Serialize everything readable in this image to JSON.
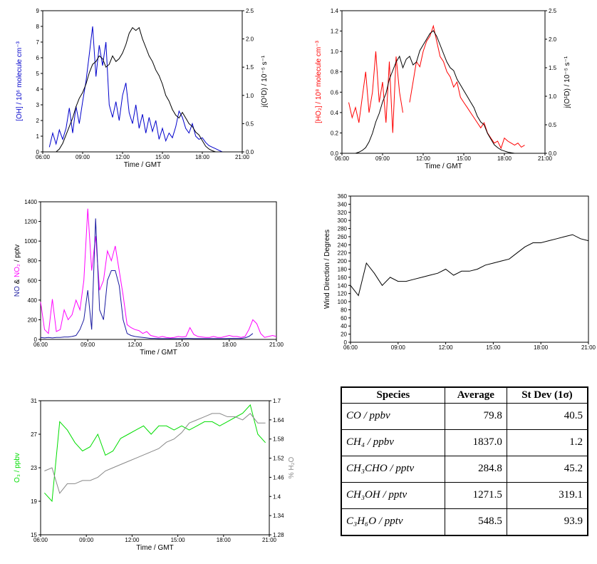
{
  "chart_data": [
    {
      "type": "line",
      "xlabel": "Time / GMT",
      "ylabel": [
        {
          "text": "[OH] / 10⁶ molecule cm⁻³",
          "color": "#0000cc"
        }
      ],
      "y2label": [
        {
          "text": "j(O¹D) / 10⁻⁵ s⁻¹",
          "color": "#000000"
        }
      ],
      "xlim": [
        6,
        21
      ],
      "xticks": [
        {
          "value": 6,
          "label": "06:00"
        },
        {
          "value": 9,
          "label": "09:00"
        },
        {
          "value": 12,
          "label": "12:00"
        },
        {
          "value": 15,
          "label": "15:00"
        },
        {
          "value": 18,
          "label": "18:00"
        },
        {
          "value": 21,
          "label": "21:00"
        }
      ],
      "ylim": [
        0,
        9
      ],
      "yticks": [
        0,
        1,
        2,
        3,
        4,
        5,
        6,
        7,
        8,
        9
      ],
      "y2lim": [
        0,
        2.5
      ],
      "y2ticks": [
        {
          "value": 0,
          "label": "0.0"
        },
        0.5,
        {
          "value": 1,
          "label": "1.0"
        },
        1.5,
        {
          "value": 2,
          "label": "2.0"
        },
        2.5
      ],
      "x": [
        6.5,
        6.75,
        7,
        7.25,
        7.5,
        7.75,
        8,
        8.25,
        8.5,
        8.75,
        9,
        9.25,
        9.5,
        9.75,
        10,
        10.25,
        10.5,
        10.75,
        11,
        11.25,
        11.5,
        11.75,
        12,
        12.25,
        12.5,
        12.75,
        13,
        13.25,
        13.5,
        13.75,
        14,
        14.25,
        14.5,
        14.75,
        15,
        15.25,
        15.5,
        15.75,
        16,
        16.25,
        16.5,
        16.75,
        17,
        17.25,
        17.5,
        17.75,
        18,
        18.25,
        18.5,
        18.75,
        19,
        19.25,
        19.5
      ],
      "series": [
        {
          "color": "#0000cc",
          "values": [
            0.3,
            1.2,
            0.5,
            1.4,
            0.8,
            1.5,
            2.8,
            1.2,
            2.9,
            1.8,
            3.2,
            4.5,
            6.2,
            8.0,
            4.8,
            6.8,
            5.5,
            7.0,
            3.0,
            2.2,
            3.2,
            2.0,
            3.6,
            4.4,
            2.5,
            1.8,
            3.0,
            1.5,
            2.4,
            1.2,
            2.2,
            1.3,
            2.0,
            0.8,
            1.5,
            0.7,
            1.2,
            0.9,
            1.6,
            2.6,
            2.2,
            1.5,
            1.2,
            1.8,
            1.0,
            0.8,
            0.9,
            0.6,
            0.4,
            0.3,
            0.2,
            0.1,
            0.0
          ]
        },
        {
          "color": "#000000",
          "axis": "y2",
          "values": [
            null,
            null,
            0.0,
            0.05,
            0.15,
            0.3,
            0.45,
            0.6,
            0.8,
            0.95,
            1.05,
            1.2,
            1.4,
            1.55,
            1.6,
            1.7,
            1.65,
            1.5,
            1.55,
            1.7,
            1.6,
            1.65,
            1.75,
            1.9,
            2.1,
            2.2,
            2.15,
            2.2,
            2.0,
            1.85,
            1.7,
            1.6,
            1.45,
            1.35,
            1.2,
            1.0,
            0.9,
            0.75,
            0.65,
            0.6,
            0.7,
            0.6,
            0.5,
            0.45,
            0.35,
            0.3,
            0.2,
            0.1,
            0.05,
            0.02,
            0.0,
            0.0,
            0.0
          ]
        }
      ]
    },
    {
      "type": "line",
      "xlabel": "Time / GMT",
      "ylabel": [
        {
          "text": "[HO₂] / 10⁸ molecule cm⁻³",
          "color": "#ff0000"
        }
      ],
      "y2label": [
        {
          "text": "j(O¹D) / 10⁻⁵ s⁻¹",
          "color": "#000000"
        }
      ],
      "xlim": [
        6,
        21
      ],
      "xticks": [
        {
          "value": 6,
          "label": "06:00"
        },
        {
          "value": 9,
          "label": "09:00"
        },
        {
          "value": 12,
          "label": "12:00"
        },
        {
          "value": 15,
          "label": "15:00"
        },
        {
          "value": 18,
          "label": "18:00"
        },
        {
          "value": 21,
          "label": "21:00"
        }
      ],
      "ylim": [
        0,
        1.4
      ],
      "yticks": [
        {
          "value": 0,
          "label": "0.0"
        },
        0.2,
        0.4,
        0.6,
        0.8,
        {
          "value": 1,
          "label": "1.0"
        },
        1.2,
        1.4
      ],
      "y2lim": [
        0,
        2.5
      ],
      "y2ticks": [
        {
          "value": 0,
          "label": "0.0"
        },
        0.5,
        {
          "value": 1,
          "label": "1.0"
        },
        1.5,
        {
          "value": 2,
          "label": "2.0"
        },
        2.5
      ],
      "x": [
        6.5,
        6.75,
        7,
        7.25,
        7.5,
        7.75,
        8,
        8.25,
        8.5,
        8.75,
        9,
        9.25,
        9.5,
        9.75,
        10,
        10.25,
        10.5,
        10.75,
        11,
        11.25,
        11.5,
        11.75,
        12,
        12.25,
        12.5,
        12.75,
        13,
        13.25,
        13.5,
        13.75,
        14,
        14.25,
        14.5,
        14.75,
        15,
        15.25,
        15.5,
        15.75,
        16,
        16.25,
        16.5,
        16.75,
        17,
        17.25,
        17.5,
        17.75,
        18,
        18.25,
        18.5,
        18.75,
        19,
        19.25,
        19.5,
        19.75,
        20
      ],
      "series": [
        {
          "color": "#ff0000",
          "values": [
            0.5,
            0.35,
            0.45,
            0.3,
            0.55,
            0.8,
            0.4,
            0.6,
            1.0,
            0.5,
            0.7,
            0.3,
            0.9,
            0.2,
            0.95,
            0.6,
            0.4,
            null,
            0.5,
            0.7,
            0.9,
            0.85,
            1.0,
            1.1,
            1.15,
            1.25,
            1.1,
            0.95,
            0.9,
            0.8,
            0.75,
            0.65,
            0.7,
            0.55,
            0.5,
            0.45,
            0.4,
            0.35,
            0.3,
            0.25,
            0.3,
            0.2,
            0.15,
            0.1,
            0.12,
            0.05,
            0.15,
            0.12,
            0.1,
            0.08,
            0.1,
            0.06,
            0.08,
            null,
            null
          ]
        },
        {
          "color": "#000000",
          "axis": "y2",
          "values": [
            null,
            null,
            0.0,
            0.02,
            0.05,
            0.1,
            0.2,
            0.35,
            0.55,
            0.7,
            0.9,
            1.05,
            1.3,
            1.45,
            1.6,
            1.7,
            1.5,
            1.65,
            1.7,
            1.55,
            1.6,
            1.8,
            1.9,
            2.0,
            2.1,
            2.15,
            2.05,
            1.9,
            1.75,
            1.6,
            1.5,
            1.45,
            1.3,
            1.2,
            1.1,
            1.0,
            0.9,
            0.8,
            0.65,
            0.55,
            0.5,
            0.35,
            0.25,
            0.15,
            0.1,
            0.06,
            0.04,
            0.02,
            0.01,
            0.0,
            0.0,
            0.0,
            0.0,
            0.0,
            0.0
          ]
        }
      ]
    },
    {
      "type": "line",
      "xlabel": "Time / GMT",
      "ylabel": [
        {
          "text": "NO",
          "color": "#1a1aa0"
        },
        {
          "text": "&",
          "color": "#000000"
        },
        {
          "text": "NO₂",
          "color": "#ff00ff"
        },
        {
          "text": "/ pptv",
          "color": "#000000"
        }
      ],
      "xlim": [
        6,
        21
      ],
      "xticks": [
        {
          "value": 6,
          "label": "06:00"
        },
        {
          "value": 9,
          "label": "09:00"
        },
        {
          "value": 12,
          "label": "12:00"
        },
        {
          "value": 15,
          "label": "15:00"
        },
        {
          "value": 18,
          "label": "18:00"
        },
        {
          "value": 21,
          "label": "21:00"
        }
      ],
      "ylim": [
        0,
        1400
      ],
      "yticks": [
        0,
        200,
        400,
        600,
        800,
        1000,
        1200,
        1400
      ],
      "x": [
        6,
        6.25,
        6.5,
        6.75,
        7,
        7.25,
        7.5,
        7.75,
        8,
        8.25,
        8.5,
        8.75,
        9,
        9.25,
        9.5,
        9.75,
        10,
        10.25,
        10.5,
        10.75,
        11,
        11.25,
        11.5,
        11.75,
        12,
        12.25,
        12.5,
        12.75,
        13,
        13.25,
        13.5,
        13.75,
        14,
        14.25,
        14.5,
        14.75,
        15,
        15.25,
        15.5,
        15.75,
        16,
        16.25,
        16.5,
        16.75,
        17,
        17.25,
        17.5,
        17.75,
        18,
        18.25,
        18.5,
        18.75,
        19,
        19.25,
        19.5,
        19.75,
        20,
        20.25,
        20.5,
        20.75,
        21
      ],
      "series": [
        {
          "color": "#ff00ff",
          "values": [
            380,
            100,
            60,
            410,
            80,
            100,
            300,
            200,
            250,
            400,
            300,
            600,
            1330,
            700,
            1050,
            500,
            600,
            900,
            800,
            950,
            700,
            450,
            150,
            120,
            100,
            90,
            60,
            80,
            40,
            30,
            20,
            30,
            20,
            15,
            20,
            30,
            25,
            30,
            120,
            50,
            30,
            25,
            20,
            20,
            30,
            20,
            20,
            30,
            40,
            30,
            30,
            20,
            30,
            100,
            200,
            160,
            60,
            20,
            30,
            40,
            30
          ]
        },
        {
          "color": "#1a1aa0",
          "values": [
            20,
            15,
            20,
            15,
            20,
            20,
            25,
            25,
            30,
            40,
            100,
            200,
            500,
            100,
            1230,
            300,
            200,
            600,
            700,
            700,
            550,
            200,
            60,
            40,
            30,
            25,
            20,
            15,
            10,
            10,
            8,
            8,
            8,
            8,
            8,
            8,
            8,
            10,
            10,
            8,
            8,
            8,
            8,
            8,
            8,
            8,
            8,
            8,
            10,
            10,
            10,
            10,
            15,
            30,
            60,
            null,
            null,
            null,
            null,
            null,
            null
          ]
        }
      ]
    },
    {
      "type": "line",
      "ylabel": [
        {
          "text": "Wind Direction / Degrees",
          "color": "#000000"
        }
      ],
      "xlim": [
        6,
        21
      ],
      "xticks": [
        {
          "value": 6,
          "label": "06:00"
        },
        {
          "value": 9,
          "label": "09:00"
        },
        {
          "value": 12,
          "label": "12:00"
        },
        {
          "value": 15,
          "label": "15:00"
        },
        {
          "value": 18,
          "label": "18:00"
        },
        {
          "value": 21,
          "label": "21:00"
        }
      ],
      "ylim": [
        0,
        360
      ],
      "yticks": [
        0,
        20,
        40,
        60,
        80,
        100,
        120,
        140,
        160,
        180,
        200,
        220,
        240,
        260,
        280,
        300,
        320,
        340,
        360
      ],
      "x": [
        6,
        6.5,
        7,
        7.5,
        8,
        8.5,
        9,
        9.5,
        10,
        10.5,
        11,
        11.5,
        12,
        12.5,
        13,
        13.5,
        14,
        14.5,
        15,
        15.5,
        16,
        16.5,
        17,
        17.5,
        18,
        18.5,
        19,
        19.5,
        20,
        20.5,
        21
      ],
      "series": [
        {
          "color": "#000000",
          "values": [
            140,
            115,
            195,
            170,
            140,
            160,
            150,
            150,
            155,
            160,
            165,
            170,
            180,
            165,
            175,
            175,
            180,
            190,
            195,
            200,
            205,
            220,
            235,
            245,
            245,
            250,
            255,
            260,
            265,
            255,
            250
          ]
        }
      ]
    },
    {
      "type": "line",
      "xlabel": "Time / GMT",
      "ylabel": [
        {
          "text": "O₃ / ppbv",
          "color": "#00dd00"
        }
      ],
      "y2label": [
        {
          "text": "% H₂O",
          "color": "#888888"
        }
      ],
      "xlim": [
        6,
        21
      ],
      "xticks": [
        {
          "value": 6,
          "label": "06:00"
        },
        {
          "value": 9,
          "label": "09:00"
        },
        {
          "value": 12,
          "label": "12:00"
        },
        {
          "value": 15,
          "label": "15:00"
        },
        {
          "value": 18,
          "label": "18:00"
        },
        {
          "value": 21,
          "label": "21:00"
        }
      ],
      "ylim": [
        15,
        31
      ],
      "yticks": [
        15,
        19,
        23,
        27,
        31
      ],
      "y2lim": [
        1.28,
        1.7
      ],
      "y2ticks": [
        1.28,
        1.34,
        1.4,
        1.46,
        1.52,
        1.58,
        1.64,
        1.7
      ],
      "x": [
        6.25,
        6.75,
        7.25,
        7.75,
        8.25,
        8.75,
        9.25,
        9.75,
        10.25,
        10.75,
        11.25,
        11.75,
        12.25,
        12.75,
        13.25,
        13.75,
        14.25,
        14.75,
        15.25,
        15.75,
        16.25,
        16.75,
        17.25,
        17.75,
        18.25,
        18.75,
        19.25,
        19.75,
        20.25,
        20.75
      ],
      "series": [
        {
          "color": "#00dd00",
          "values": [
            20,
            19,
            28.5,
            27.5,
            26,
            25,
            25.5,
            27,
            24.5,
            25,
            26.5,
            27,
            27.5,
            28,
            27,
            28,
            28,
            27.5,
            28,
            27.5,
            28,
            28.5,
            28.5,
            28,
            28.5,
            29,
            29.5,
            30.5,
            27,
            26
          ]
        },
        {
          "color": "#888888",
          "axis": "y2",
          "values": [
            1.48,
            1.49,
            1.41,
            1.44,
            1.44,
            1.45,
            1.45,
            1.46,
            1.48,
            1.49,
            1.5,
            1.51,
            1.52,
            1.53,
            1.54,
            1.55,
            1.57,
            1.58,
            1.6,
            1.63,
            1.64,
            1.65,
            1.66,
            1.66,
            1.65,
            1.65,
            1.64,
            1.66,
            1.63,
            1.63
          ]
        }
      ]
    }
  ],
  "table": {
    "header": [
      "Species",
      "Average",
      "St Dev (1σ)"
    ],
    "rows": [
      [
        "CO / ppbv",
        "79.8",
        "40.5"
      ],
      [
        "CH₄ / ppbv",
        "1837.0",
        "1.2"
      ],
      [
        "CH₃CHO / pptv",
        "284.8",
        "45.2"
      ],
      [
        "CH₃OH / pptv",
        "1271.5",
        "319.1"
      ],
      [
        "C₃H₆O / pptv",
        "548.5",
        "93.9"
      ]
    ]
  }
}
